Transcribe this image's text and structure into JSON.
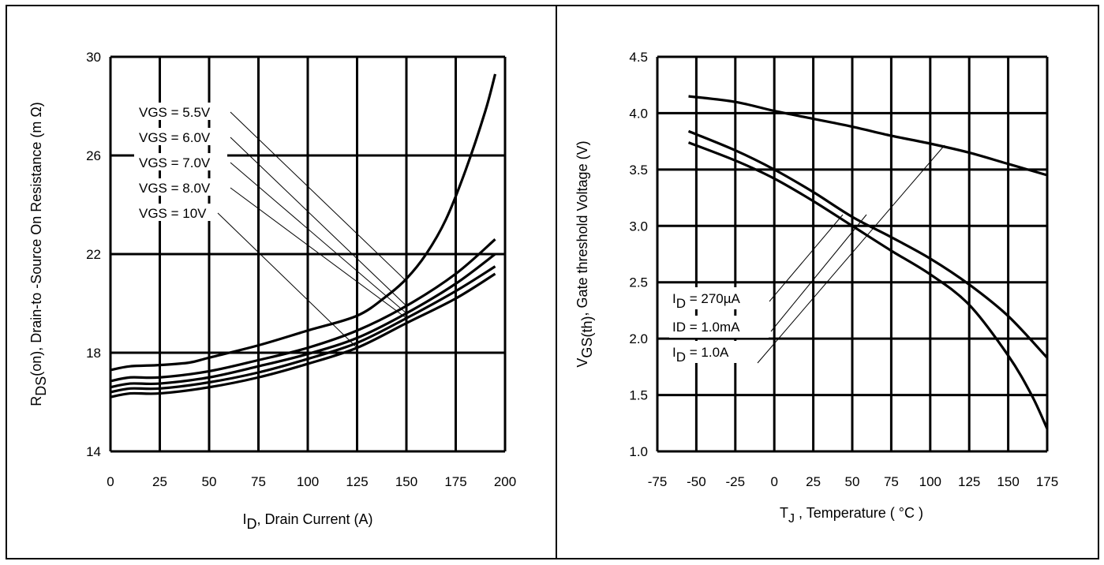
{
  "chart_data": [
    {
      "type": "line",
      "xlabel_main": "I",
      "xlabel_sub": "D",
      "xlabel_rest": ", Drain Current (A)",
      "ylabel_main": "R",
      "ylabel_sub": "DS",
      "ylabel_rest": "(on),  Drain-to -Source On Resistance (m Ω)",
      "xlim": [
        0,
        200
      ],
      "ylim": [
        14,
        30
      ],
      "xticks": [
        0,
        25,
        50,
        75,
        100,
        125,
        150,
        175,
        200
      ],
      "yticks": [
        14,
        18,
        22,
        26,
        30
      ],
      "xtick_labels": [
        "0",
        "25",
        "50",
        "75",
        "100",
        "125",
        "150",
        "175",
        "200"
      ],
      "ytick_labels": [
        "14",
        "18",
        "22",
        "26",
        "30"
      ],
      "grid": true,
      "series": [
        {
          "name": "VGS = 5.5V",
          "x": [
            0,
            10,
            25,
            40,
            50,
            75,
            100,
            125,
            140,
            150,
            160,
            170,
            180,
            190,
            195
          ],
          "y": [
            17.3,
            17.45,
            17.5,
            17.6,
            17.8,
            18.3,
            18.9,
            19.5,
            20.3,
            21.0,
            22.0,
            23.4,
            25.4,
            27.8,
            29.3
          ]
        },
        {
          "name": "VGS = 6.0V",
          "x": [
            0,
            10,
            25,
            50,
            75,
            100,
            125,
            150,
            175,
            195
          ],
          "y": [
            16.85,
            17.0,
            17.0,
            17.25,
            17.7,
            18.2,
            18.9,
            19.9,
            21.2,
            22.6
          ]
        },
        {
          "name": "VGS = 7.0V",
          "x": [
            0,
            10,
            25,
            50,
            75,
            100,
            125,
            150,
            175,
            195
          ],
          "y": [
            16.6,
            16.75,
            16.75,
            17.0,
            17.45,
            17.95,
            18.6,
            19.6,
            20.8,
            22.0
          ]
        },
        {
          "name": "VGS = 8.0V",
          "x": [
            0,
            10,
            25,
            50,
            75,
            100,
            125,
            150,
            175,
            195
          ],
          "y": [
            16.4,
            16.55,
            16.55,
            16.8,
            17.2,
            17.75,
            18.4,
            19.4,
            20.5,
            21.5
          ]
        },
        {
          "name": "VGS = 10V",
          "x": [
            0,
            10,
            25,
            50,
            75,
            100,
            125,
            150,
            175,
            195
          ],
          "y": [
            16.2,
            16.35,
            16.35,
            16.6,
            17.0,
            17.55,
            18.2,
            19.2,
            20.2,
            21.2
          ]
        }
      ],
      "annotations": [
        {
          "text": "VGS = 5.5V",
          "to": [
            150,
            20.9
          ]
        },
        {
          "text": "VGS = 6.0V",
          "to": [
            150,
            19.9
          ]
        },
        {
          "text": "VGS = 7.0V",
          "to": [
            150,
            19.6
          ]
        },
        {
          "text": "VGS = 8.0V",
          "to": [
            150,
            19.4
          ]
        },
        {
          "text": "VGS = 10V",
          "to": [
            125,
            18.2
          ]
        }
      ]
    },
    {
      "type": "line",
      "xlabel_main": "T",
      "xlabel_sub": "J",
      "xlabel_rest": " , Temperature ( °C )",
      "ylabel_main": "V",
      "ylabel_sub": "GS(th)",
      "ylabel_rest": ", Gate threshold Voltage (V)",
      "xlim": [
        -75,
        175
      ],
      "ylim": [
        1.0,
        4.5
      ],
      "xticks": [
        -75,
        -50,
        -25,
        0,
        25,
        50,
        75,
        100,
        125,
        150,
        175
      ],
      "yticks": [
        1.0,
        1.5,
        2.0,
        2.5,
        3.0,
        3.5,
        4.0,
        4.5
      ],
      "xtick_labels": [
        "-75",
        "-50",
        "-25",
        "0",
        "25",
        "50",
        "75",
        "100",
        "125",
        "150",
        "175"
      ],
      "ytick_labels": [
        "1.0",
        "1.5",
        "2.0",
        "2.5",
        "3.0",
        "3.5",
        "4.0",
        "4.5"
      ],
      "grid": true,
      "series": [
        {
          "name": "I_D = 270µA",
          "x": [
            -55,
            -25,
            0,
            25,
            50,
            75,
            100,
            125,
            150,
            165,
            175
          ],
          "y": [
            3.74,
            3.58,
            3.42,
            3.22,
            3.0,
            2.78,
            2.57,
            2.3,
            1.85,
            1.5,
            1.2
          ]
        },
        {
          "name": "ID = 1.0mA",
          "x": [
            -55,
            -25,
            0,
            25,
            50,
            75,
            100,
            125,
            150,
            175
          ],
          "y": [
            3.84,
            3.67,
            3.5,
            3.3,
            3.08,
            2.9,
            2.71,
            2.48,
            2.2,
            1.83
          ]
        },
        {
          "name": "I_D = 1.0A",
          "x": [
            -55,
            -25,
            0,
            25,
            50,
            75,
            100,
            125,
            150,
            175
          ],
          "y": [
            4.15,
            4.1,
            4.02,
            3.95,
            3.88,
            3.8,
            3.73,
            3.65,
            3.55,
            3.45
          ]
        }
      ],
      "annotations": [
        {
          "sub": "D",
          "main": "I",
          "rest": " = 270µA"
        },
        {
          "text": "ID = 1.0mA"
        },
        {
          "sub": "D",
          "main": "I",
          "rest": " = 1.0A"
        }
      ]
    }
  ]
}
